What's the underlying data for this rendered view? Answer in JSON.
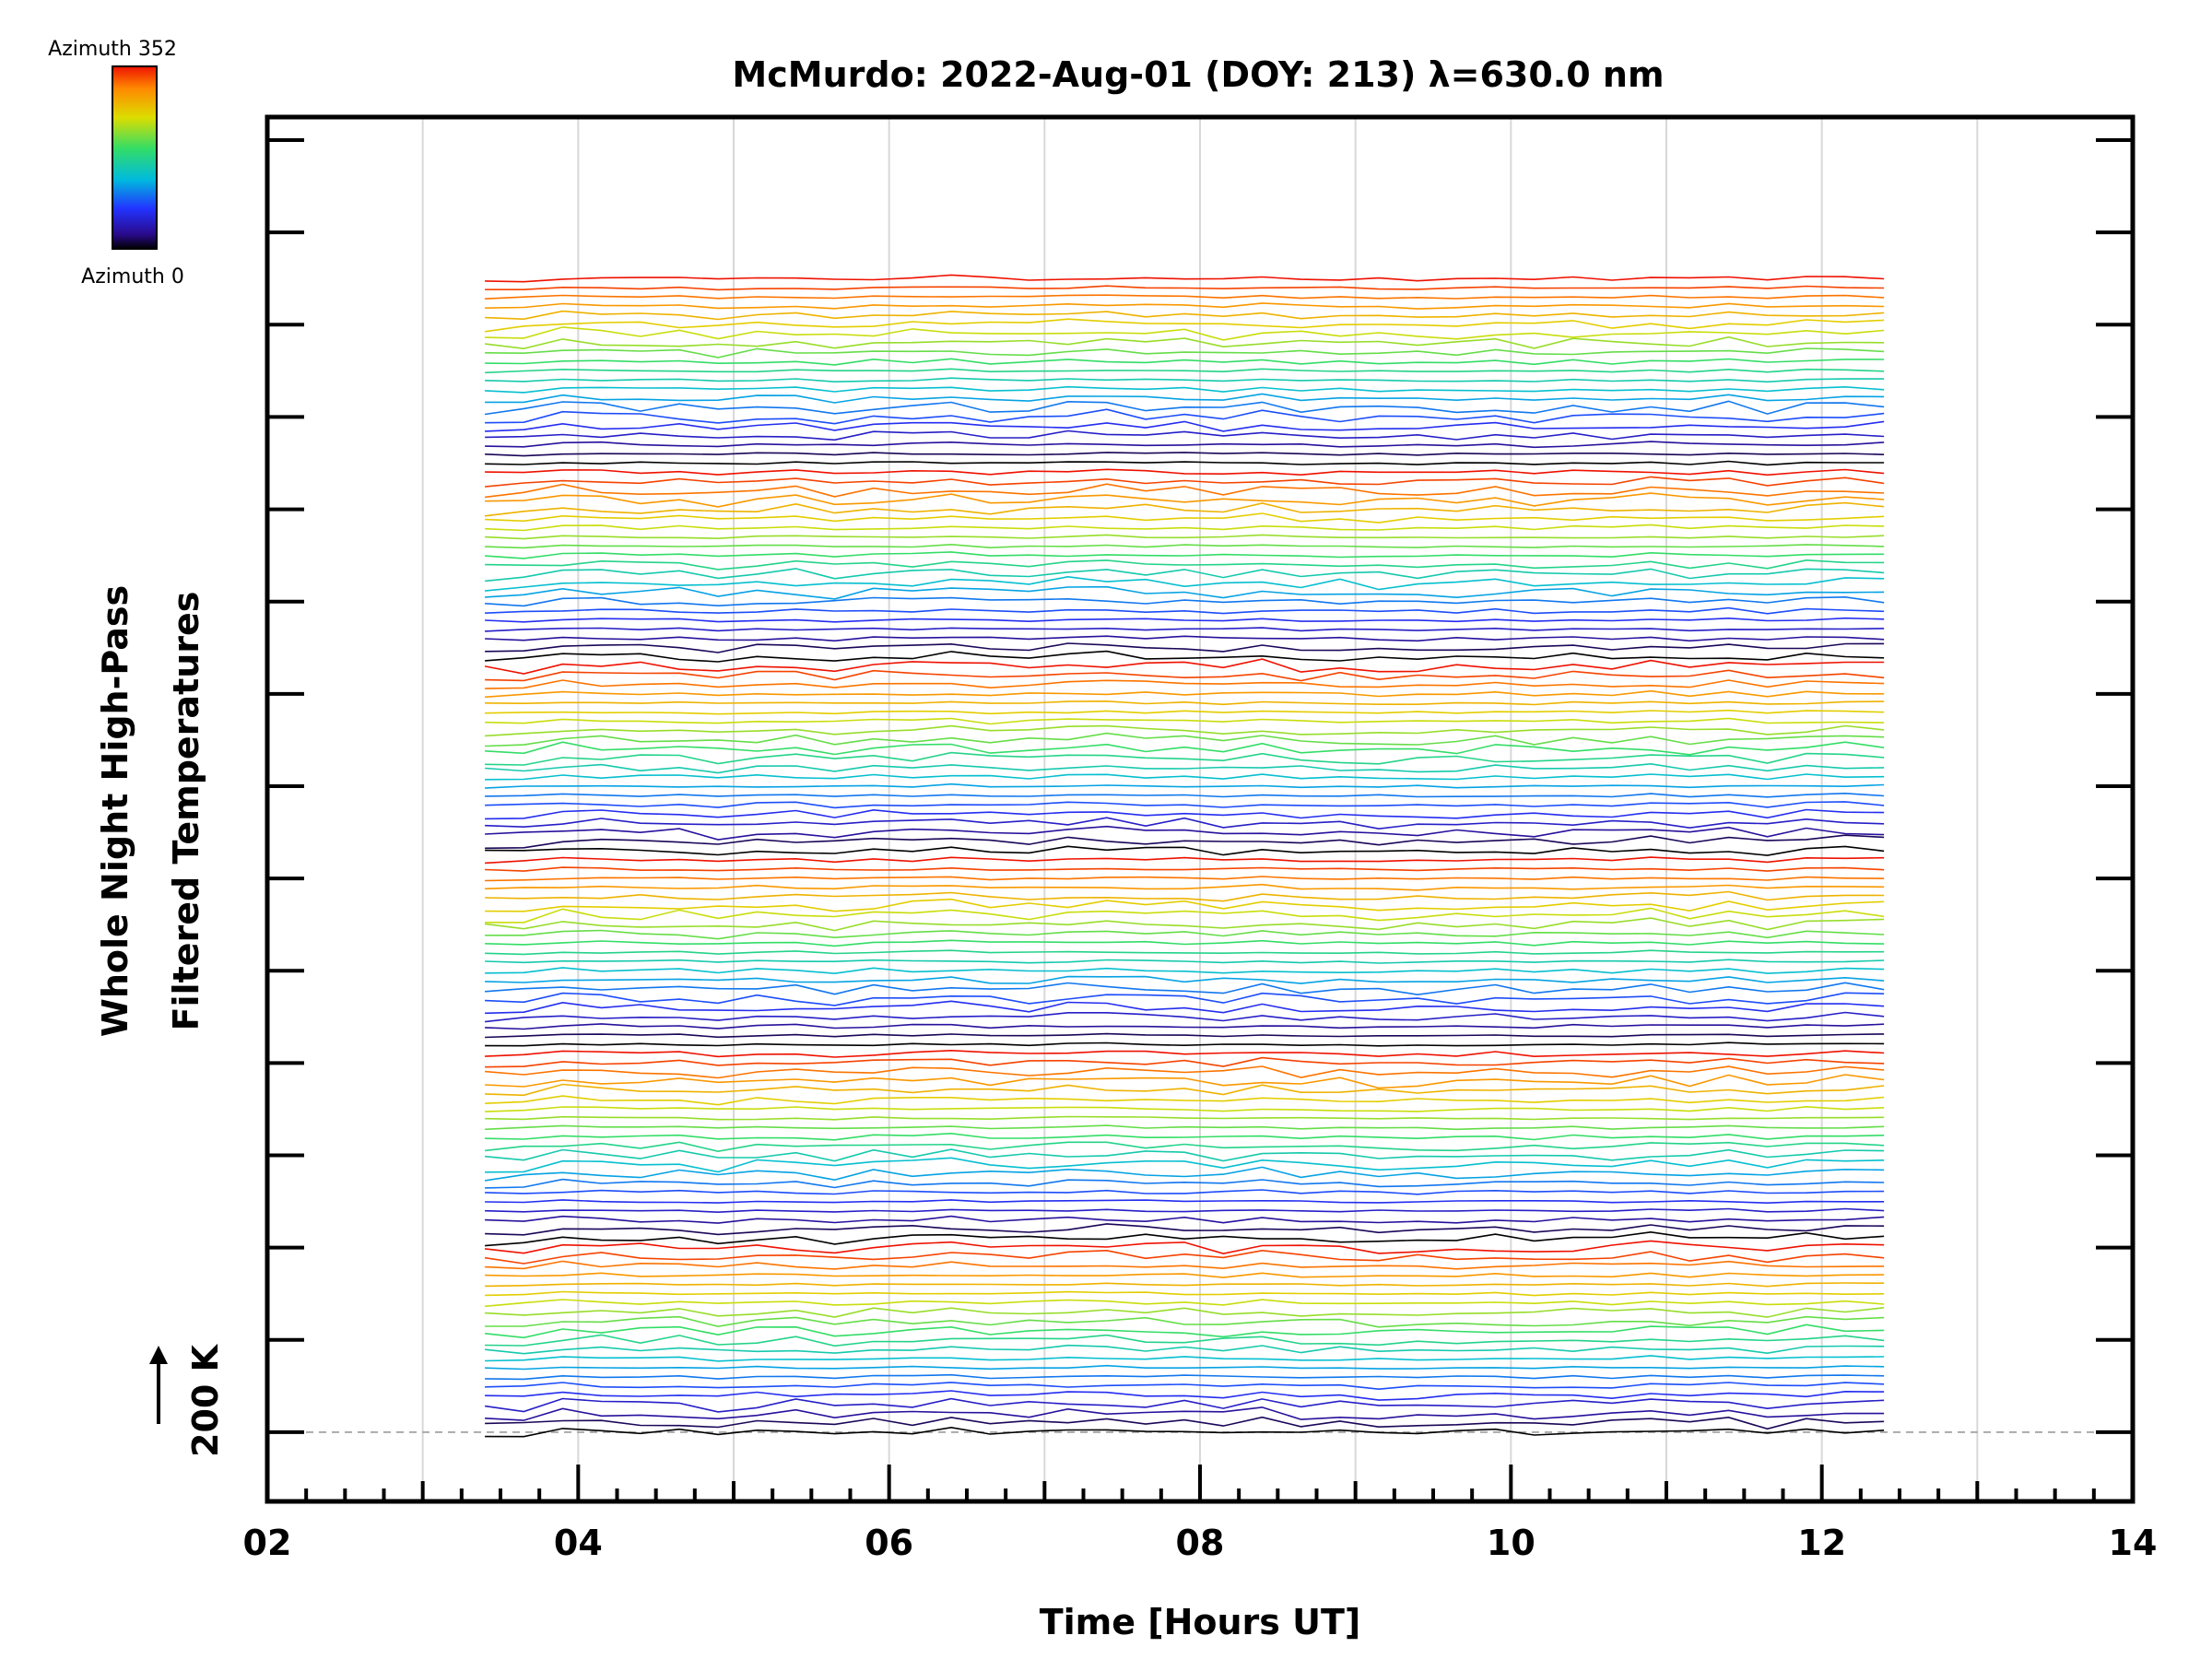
{
  "chart_data": {
    "type": "line",
    "title": "McMurdo: 2022-Aug-01 (DOY: 213) λ=630.0 nm",
    "xlabel": "Time [Hours UT]",
    "ylabel_line1": "Whole Night High-Pass",
    "ylabel_line2": "Filtered Temperatures",
    "scale_label": "200 K",
    "xlim": [
      2,
      14
    ],
    "x_ticks": [
      "02",
      "04",
      "06",
      "08",
      "10",
      "12",
      "14"
    ],
    "x_tick_values": [
      2,
      4,
      6,
      8,
      10,
      12,
      14
    ],
    "x_grid_values": [
      3,
      4,
      5,
      6,
      7,
      8,
      9,
      10,
      11,
      12,
      13
    ],
    "time_range": [
      3.4,
      12.6
    ],
    "time_step_hours": 0.25,
    "n_traces": 126,
    "n_groups": 6,
    "traces_per_group": 21,
    "trace_spacing_K": 20,
    "scale_K": 200,
    "ylim_K": [
      -150,
      2850
    ],
    "y_tick_step_K": 200,
    "baseline_K": 0,
    "noise_amplitude_K": 6,
    "colorbar": {
      "top_label": "Azimuth  352",
      "bottom_label": "Azimuth  0",
      "azimuth_range": [
        0,
        352
      ]
    }
  }
}
